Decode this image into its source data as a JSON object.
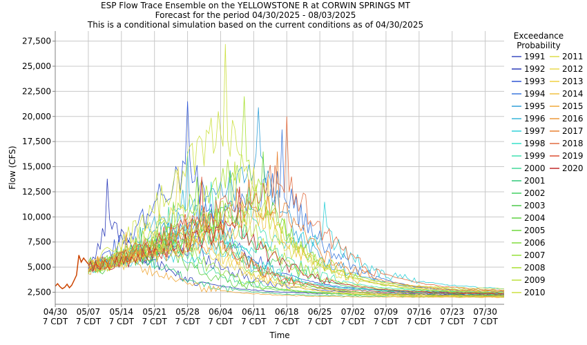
{
  "chart_data": {
    "type": "line",
    "title": "ESP Flow Trace Ensemble on the YELLOWSTONE R at CORWIN SPRINGS MT",
    "subtitle1": "Forecast for the period 04/30/2025 - 08/03/2025",
    "subtitle2": "This is a conditional simulation based on the current conditions as of 04/30/2025",
    "xlabel": "Time",
    "ylabel": "Flow (CFS)",
    "ylim": [
      1300,
      28500
    ],
    "yticks": [
      "2,500",
      "5,000",
      "7,500",
      "10,000",
      "12,500",
      "15,000",
      "17,500",
      "20,000",
      "22,500",
      "25,000",
      "27,500"
    ],
    "ytick_values": [
      2500,
      5000,
      7500,
      10000,
      12500,
      15000,
      17500,
      20000,
      22500,
      25000,
      27500
    ],
    "xlim_days": [
      0,
      95
    ],
    "xticks": [
      {
        "day": 0,
        "date": "04/30",
        "time": "7 CDT"
      },
      {
        "day": 7,
        "date": "05/07",
        "time": "7 CDT"
      },
      {
        "day": 14,
        "date": "05/14",
        "time": "7 CDT"
      },
      {
        "day": 21,
        "date": "05/21",
        "time": "7 CDT"
      },
      {
        "day": 28,
        "date": "05/28",
        "time": "7 CDT"
      },
      {
        "day": 35,
        "date": "06/04",
        "time": "7 CDT"
      },
      {
        "day": 42,
        "date": "06/11",
        "time": "7 CDT"
      },
      {
        "day": 49,
        "date": "06/18",
        "time": "7 CDT"
      },
      {
        "day": 56,
        "date": "06/25",
        "time": "7 CDT"
      },
      {
        "day": 63,
        "date": "07/02",
        "time": "7 CDT"
      },
      {
        "day": 70,
        "date": "07/09",
        "time": "7 CDT"
      },
      {
        "day": 77,
        "date": "07/16",
        "time": "7 CDT"
      },
      {
        "day": 84,
        "date": "07/23",
        "time": "7 CDT"
      },
      {
        "day": 91,
        "date": "07/30",
        "time": "7 CDT"
      }
    ],
    "grid": true,
    "legend_title": [
      "Exceedance",
      "Probability"
    ],
    "legend_placement": "right",
    "observed": {
      "color": "#cc4400",
      "x": [
        0,
        0.5,
        1,
        1.5,
        2,
        2.5,
        3,
        3.5,
        4,
        4.5,
        5,
        5.5,
        6,
        6.5,
        7
      ],
      "y": [
        3100,
        3350,
        3050,
        2850,
        3000,
        3300,
        2950,
        3200,
        3700,
        4200,
        6200,
        5500,
        5900,
        5600,
        5300
      ]
    },
    "series": [
      {
        "name": "1991",
        "color": "#3b4cc0",
        "peak_day": 30,
        "peak": 9500,
        "end": 2300
      },
      {
        "name": "1992",
        "color": "#2838b8",
        "peak_day": 11,
        "peak": 13800,
        "end": 2250
      },
      {
        "name": "1993",
        "color": "#2f56d4",
        "peak_day": 28,
        "peak": 21500,
        "end": 2350
      },
      {
        "name": "1994",
        "color": "#3a78dc",
        "peak_day": 48,
        "peak": 18700,
        "end": 2200
      },
      {
        "name": "1995",
        "color": "#2f9fd8",
        "peak_day": 43,
        "peak": 20900,
        "end": 2400
      },
      {
        "name": "1996",
        "color": "#36b6d8",
        "peak_day": 28,
        "peak": 16500,
        "end": 2500
      },
      {
        "name": "1997",
        "color": "#2fd0d8",
        "peak_day": 57,
        "peak": 11500,
        "end": 2700
      },
      {
        "name": "1998",
        "color": "#36e0c8",
        "peak_day": 33,
        "peak": 13500,
        "end": 2300
      },
      {
        "name": "1999",
        "color": "#3fe0b0",
        "peak_day": 41,
        "peak": 13000,
        "end": 2450
      },
      {
        "name": "2000",
        "color": "#40d898",
        "peak_day": 24,
        "peak": 11000,
        "end": 2150
      },
      {
        "name": "2001",
        "color": "#2fc878",
        "peak_day": 18,
        "peak": 9000,
        "end": 2050
      },
      {
        "name": "2002",
        "color": "#40d060",
        "peak_day": 37,
        "peak": 14500,
        "end": 2250
      },
      {
        "name": "2003",
        "color": "#4ac848",
        "peak_day": 34,
        "peak": 12000,
        "end": 2100
      },
      {
        "name": "2004",
        "color": "#5cd040",
        "peak_day": 22,
        "peak": 10500,
        "end": 2200
      },
      {
        "name": "2005",
        "color": "#6ed83c",
        "peak_day": 44,
        "peak": 16500,
        "end": 2300
      },
      {
        "name": "2006",
        "color": "#80dc3a",
        "peak_day": 30,
        "peak": 14000,
        "end": 2150
      },
      {
        "name": "2007",
        "color": "#94e038",
        "peak_day": 25,
        "peak": 11500,
        "end": 2050
      },
      {
        "name": "2008",
        "color": "#a8e030",
        "peak_day": 40,
        "peak": 22000,
        "end": 2600
      },
      {
        "name": "2009",
        "color": "#bce03a",
        "peak_day": 38,
        "peak": 15500,
        "end": 2350
      },
      {
        "name": "2010",
        "color": "#cce040",
        "peak_day": 36,
        "peak": 27200,
        "end": 2400
      },
      {
        "name": "2011",
        "color": "#dcdc48",
        "peak_day": 42,
        "peak": 15000,
        "end": 2800
      },
      {
        "name": "2012",
        "color": "#e8d84c",
        "peak_day": 26,
        "peak": 15000,
        "end": 2100
      },
      {
        "name": "2013",
        "color": "#f0d040",
        "peak_day": 32,
        "peak": 10500,
        "end": 2000
      },
      {
        "name": "2014",
        "color": "#f0c040",
        "peak_day": 45,
        "peak": 14000,
        "end": 2500
      },
      {
        "name": "2015",
        "color": "#f0a838",
        "peak_day": 15,
        "peak": 8500,
        "end": 2000
      },
      {
        "name": "2016",
        "color": "#ec9838",
        "peak_day": 35,
        "peak": 10500,
        "end": 2100
      },
      {
        "name": "2017",
        "color": "#e88030",
        "peak_day": 47,
        "peak": 16500,
        "end": 2450
      },
      {
        "name": "2018",
        "color": "#e06c40",
        "peak_day": 49,
        "peak": 20000,
        "end": 2500
      },
      {
        "name": "2019",
        "color": "#dc4c30",
        "peak_day": 31,
        "peak": 14000,
        "end": 2300
      },
      {
        "name": "2020",
        "color": "#c02828",
        "peak_day": 39,
        "peak": 13000,
        "end": 2350
      }
    ]
  }
}
